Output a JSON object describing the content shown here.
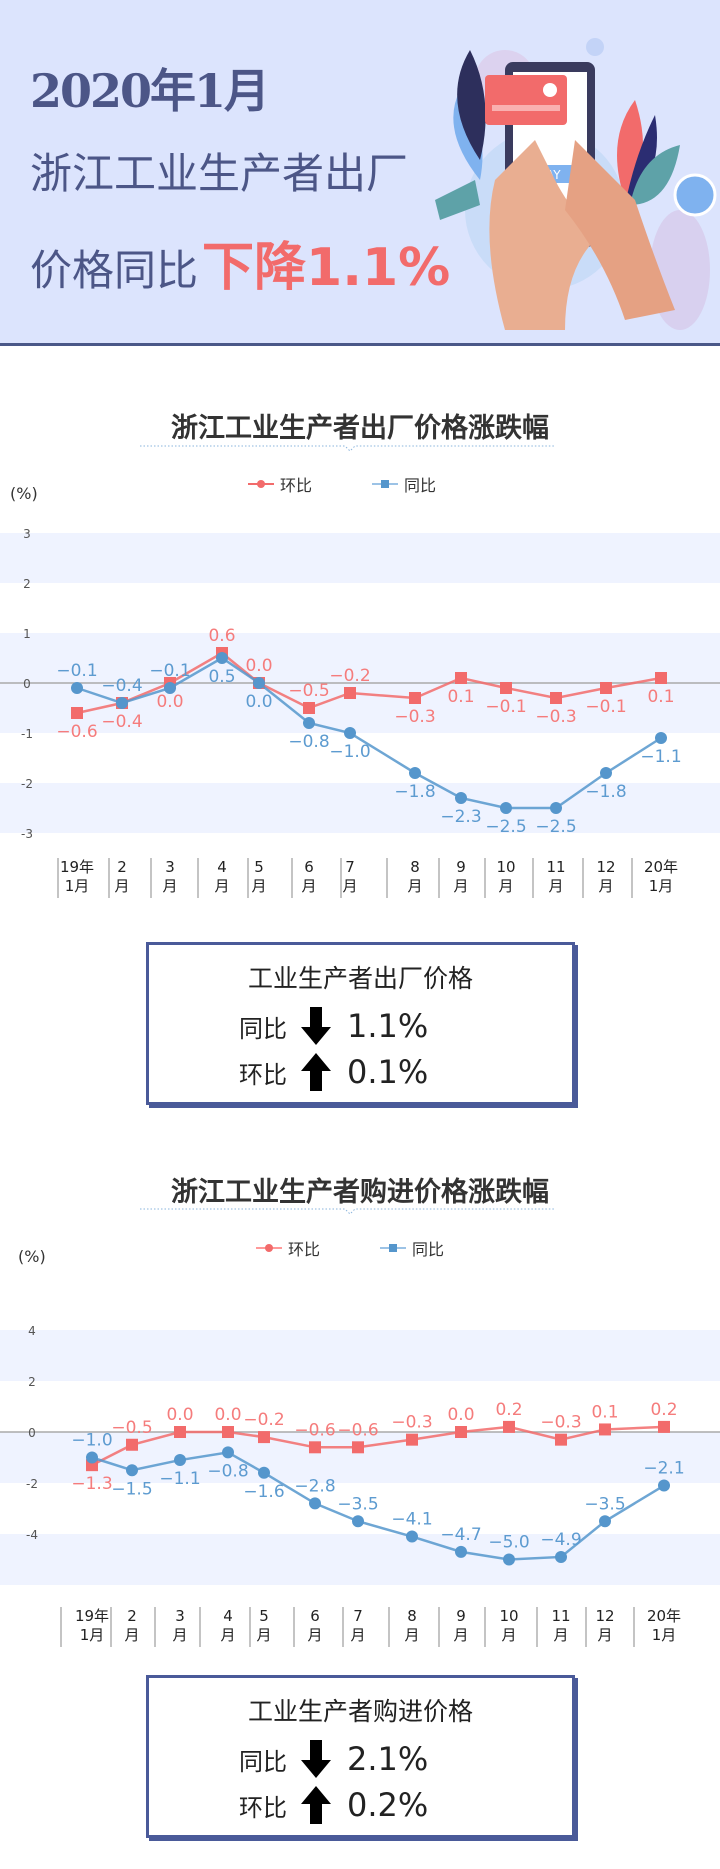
{
  "header": {
    "line1": "2020年1月",
    "line2": "浙江工业生产者出厂",
    "line3_prefix": "价格同比",
    "line3_highlight": "下降1.1%",
    "illustration_text": "PAY"
  },
  "colors": {
    "huanbi": "#f26b6b",
    "tongbi": "#5596cc",
    "band": "#eff3ff",
    "accent": "#4a5a99"
  },
  "legend": {
    "huanbi": "环比",
    "tongbi": "同比"
  },
  "unit": "(%)",
  "chart_data": [
    {
      "type": "line",
      "title": "浙江工业生产者出厂价格涨跌幅",
      "categories": [
        [
          "19年",
          "1月"
        ],
        [
          "2",
          "月"
        ],
        [
          "3",
          "月"
        ],
        [
          "4",
          "月"
        ],
        [
          "5",
          "月"
        ],
        [
          "6",
          "月"
        ],
        [
          "7",
          "月"
        ],
        [
          "8",
          "月"
        ],
        [
          "9",
          "月"
        ],
        [
          "10",
          "月"
        ],
        [
          "11",
          "月"
        ],
        [
          "12",
          "月"
        ],
        [
          "20年",
          "1月"
        ]
      ],
      "ylim": [
        -3,
        3
      ],
      "yticks": [
        3,
        2,
        1,
        0,
        -1,
        -2,
        -3
      ],
      "ylabel": "(%)",
      "series": [
        {
          "name": "环比",
          "values": [
            -0.6,
            -0.4,
            0.0,
            0.6,
            0.0,
            -0.5,
            -0.2,
            -0.3,
            0.1,
            -0.1,
            -0.3,
            -0.1,
            0.1
          ]
        },
        {
          "name": "同比",
          "values": [
            -0.1,
            -0.4,
            -0.1,
            0.5,
            0.0,
            -0.8,
            -1.0,
            -1.8,
            -2.3,
            -2.5,
            -2.5,
            -1.8,
            -1.1
          ]
        }
      ],
      "legend": "top-center"
    },
    {
      "type": "line",
      "title": "浙江工业生产者购进价格涨跌幅",
      "categories": [
        [
          "19年",
          "1月"
        ],
        [
          "2",
          "月"
        ],
        [
          "3",
          "月"
        ],
        [
          "4",
          "月"
        ],
        [
          "5",
          "月"
        ],
        [
          "6",
          "月"
        ],
        [
          "7",
          "月"
        ],
        [
          "8",
          "月"
        ],
        [
          "9",
          "月"
        ],
        [
          "10",
          "月"
        ],
        [
          "11",
          "月"
        ],
        [
          "12",
          "月"
        ],
        [
          "20年",
          "1月"
        ]
      ],
      "ylim": [
        -6,
        4
      ],
      "yticks": [
        4,
        2,
        0,
        -2,
        -4
      ],
      "ylabel": "(%)",
      "series": [
        {
          "name": "环比",
          "values": [
            -1.3,
            -0.5,
            0.0,
            0.0,
            -0.2,
            -0.6,
            -0.6,
            -0.3,
            0.0,
            0.2,
            -0.3,
            0.1,
            0.2
          ]
        },
        {
          "name": "同比",
          "values": [
            -1.0,
            -1.5,
            -1.1,
            -0.8,
            -1.6,
            -2.8,
            -3.5,
            -4.1,
            -4.7,
            -5.0,
            -4.9,
            -3.5,
            -2.1
          ]
        }
      ],
      "legend": "top-center"
    }
  ],
  "summary1": {
    "title": "工业生产者出厂价格",
    "tongbi_label": "同比",
    "tongbi_dir": "down",
    "tongbi_value": "1.1%",
    "huanbi_label": "环比",
    "huanbi_dir": "up",
    "huanbi_value": "0.1%"
  },
  "summary2": {
    "title": "工业生产者购进价格",
    "tongbi_label": "同比",
    "tongbi_dir": "down",
    "tongbi_value": "2.1%",
    "huanbi_label": "环比",
    "huanbi_dir": "up",
    "huanbi_value": "0.2%"
  }
}
